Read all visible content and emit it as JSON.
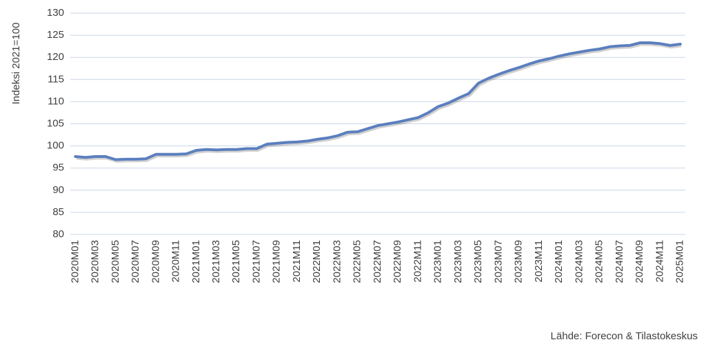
{
  "chart_data": {
    "type": "line",
    "y_label": "Indeksi 2021=100",
    "source": "Lähde: Forecon & Tilastokeskus",
    "categories": [
      "2020M01",
      null,
      "2020M03",
      null,
      "2020M05",
      null,
      "2020M07",
      null,
      "2020M09",
      null,
      "2020M11",
      null,
      "2021M01",
      null,
      "2021M03",
      null,
      "2021M05",
      null,
      "2021M07",
      null,
      "2021M09",
      null,
      "2021M11",
      null,
      "2022M01",
      null,
      "2022M03",
      null,
      "2022M05",
      null,
      "2022M07",
      null,
      "2022M09",
      null,
      "2022M11",
      null,
      "2023M01",
      null,
      "2023M03",
      null,
      "2023M05",
      null,
      "2023M07",
      null,
      "2023M09",
      null,
      "2023M11",
      null,
      "2024M01",
      null,
      "2024M03",
      null,
      "2024M05",
      null,
      "2024M07",
      null,
      "2024M09",
      null,
      "2024M11",
      null,
      "2025M01"
    ],
    "series": [
      {
        "color": "#5b7fbf",
        "values": [
          97.6,
          97.4,
          97.6,
          97.6,
          96.9,
          97.0,
          97.0,
          97.1,
          98.1,
          98.1,
          98.1,
          98.2,
          99.0,
          99.2,
          99.1,
          99.2,
          99.2,
          99.4,
          99.4,
          100.4,
          100.6,
          100.8,
          100.9,
          101.1,
          101.5,
          101.8,
          102.3,
          103.1,
          103.2,
          103.9,
          104.6,
          105.0,
          105.4,
          105.9,
          106.4,
          107.5,
          108.9,
          109.7,
          110.8,
          111.8,
          114.2,
          115.3,
          116.2,
          117.0,
          117.7,
          118.5,
          119.2,
          119.7,
          120.3,
          120.8,
          121.2,
          121.6,
          121.9,
          122.4,
          122.6,
          122.7,
          123.3,
          123.3,
          123.1,
          122.7,
          123.0
        ]
      }
    ],
    "ylim": [
      80,
      130
    ],
    "yticks": [
      80,
      85,
      90,
      95,
      100,
      105,
      110,
      115,
      120,
      125,
      130
    ],
    "grid": true
  }
}
